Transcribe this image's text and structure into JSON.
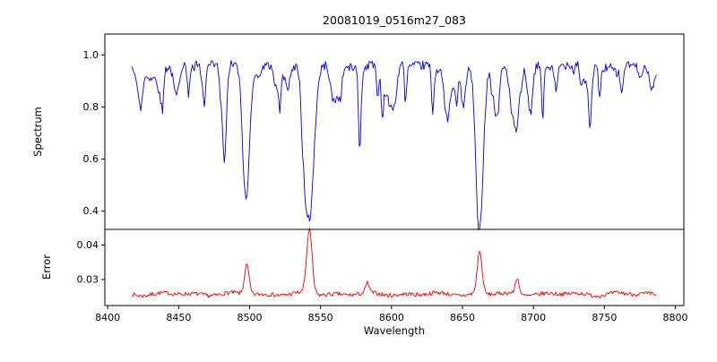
{
  "figure": {
    "background": "#ffffff",
    "text_color": "#000000"
  },
  "chart_data": [
    {
      "type": "line",
      "title": "20081019_0516m27_083",
      "ylabel": "Spectrum",
      "color": "#0000dd",
      "seed": 42,
      "x_range": [
        8417,
        8787
      ],
      "xlim": [
        8398,
        8806
      ],
      "ylim": [
        0.33,
        1.08
      ],
      "yticks": [
        0.4,
        0.6,
        0.8,
        1.0
      ],
      "ytick_labels": [
        "0.4",
        "0.6",
        "0.8",
        "1.0"
      ],
      "continuum": 0.96,
      "noise_amplitude": 0.035,
      "minor_line_count": 75,
      "absorption_lines": [
        {
          "center": 8498.0,
          "depth": 0.43,
          "sigma": 2.2
        },
        {
          "center": 8542.1,
          "depth": 0.585,
          "sigma": 3.2
        },
        {
          "center": 8662.1,
          "depth": 0.565,
          "sigma": 2.6
        },
        {
          "center": 8688.6,
          "depth": 0.21,
          "sigma": 1.6
        }
      ],
      "grid": false
    },
    {
      "type": "line",
      "ylabel": "Error",
      "xlabel": "Wavelength",
      "color": "#ee0000",
      "seed": 7,
      "x_range": [
        8417,
        8787
      ],
      "xlim": [
        8398,
        8806
      ],
      "ylim": [
        0.0225,
        0.0445
      ],
      "yticks": [
        0.03,
        0.04
      ],
      "ytick_labels": [
        "0.03",
        "0.04"
      ],
      "xticks": [
        8400,
        8450,
        8500,
        8550,
        8600,
        8650,
        8700,
        8750,
        8800
      ],
      "xtick_labels": [
        "8400",
        "8450",
        "8500",
        "8550",
        "8600",
        "8650",
        "8700",
        "8750",
        "8800"
      ],
      "baseline": 0.0258,
      "noise_amplitude": 0.0012,
      "peaks": [
        {
          "center": 8498.0,
          "height": 0.0085,
          "sigma": 1.6
        },
        {
          "center": 8542.1,
          "height": 0.0185,
          "sigma": 1.9
        },
        {
          "center": 8583.0,
          "height": 0.0028,
          "sigma": 1.2
        },
        {
          "center": 8662.1,
          "height": 0.0122,
          "sigma": 1.7
        },
        {
          "center": 8688.6,
          "height": 0.0048,
          "sigma": 1.3
        }
      ],
      "grid": false
    }
  ]
}
